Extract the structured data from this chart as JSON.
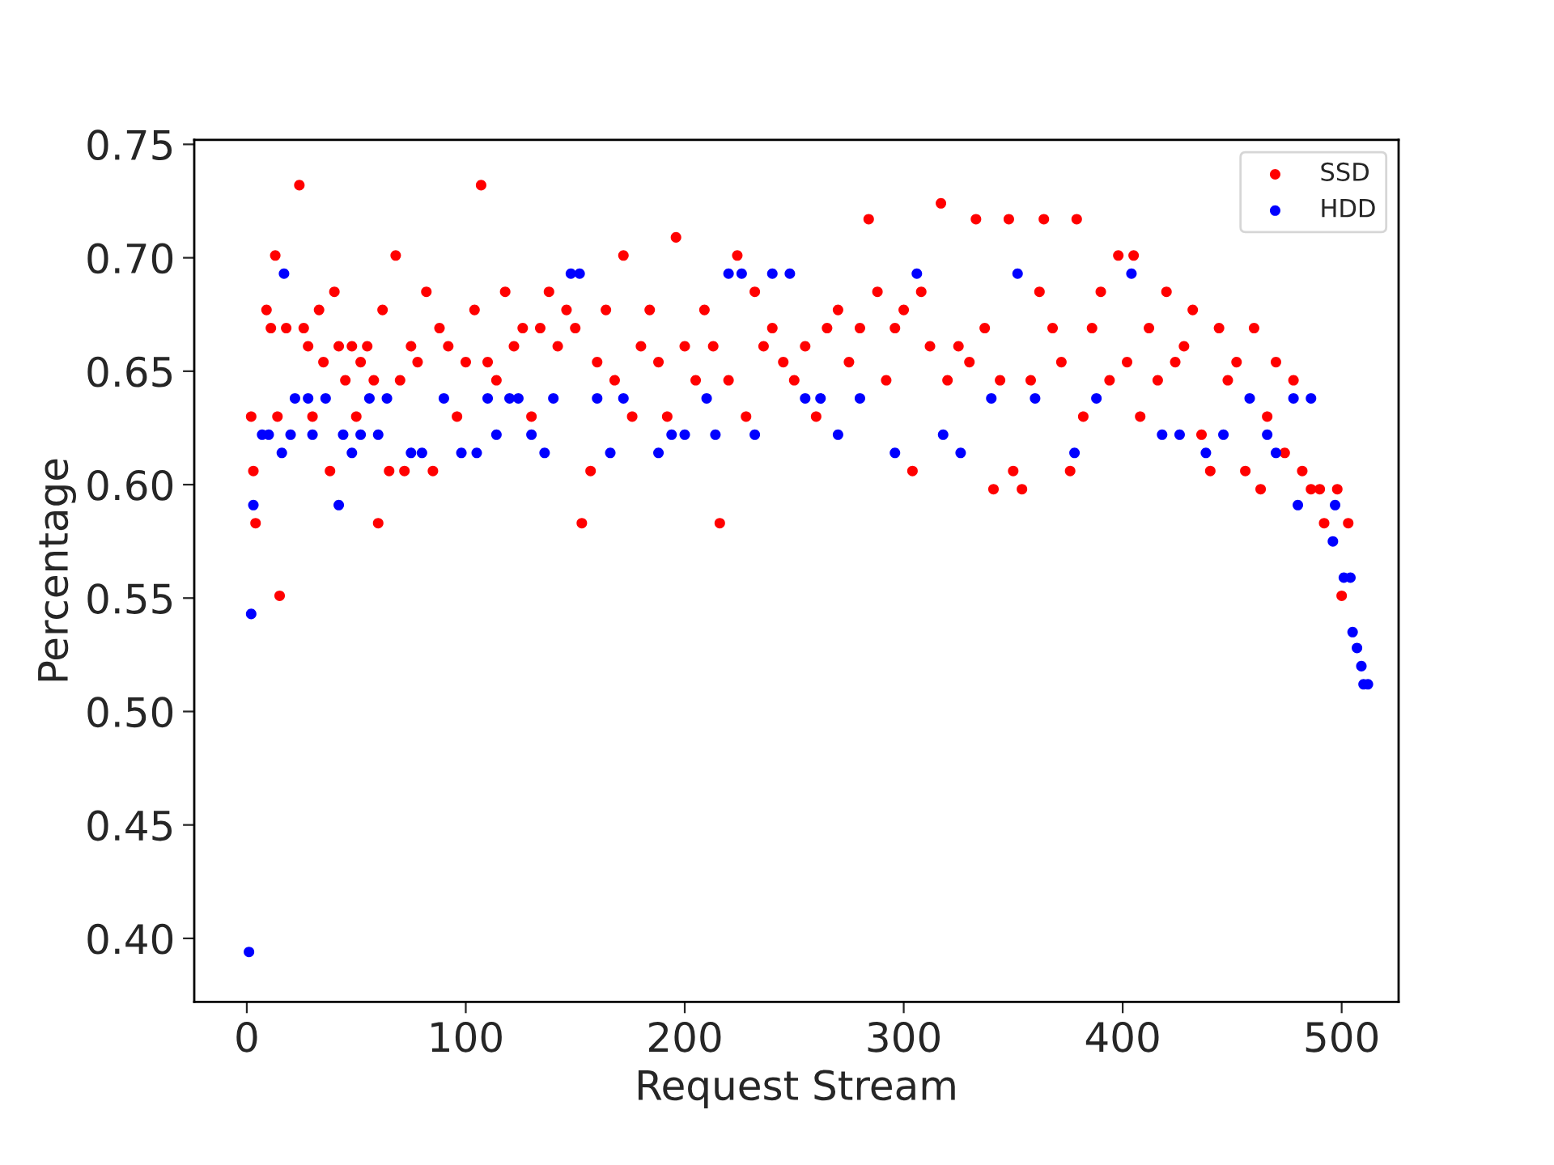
{
  "chart_data": {
    "type": "scatter",
    "xlabel": "Request Stream",
    "ylabel": "Percentage",
    "xlim": [
      -24,
      526
    ],
    "xticks": [
      0,
      100,
      200,
      300,
      400,
      500
    ],
    "ylim": [
      0.372,
      0.752
    ],
    "yticks": [
      {
        "value": 0.4,
        "label": "0.40"
      },
      {
        "value": 0.45,
        "label": "0.45"
      },
      {
        "value": 0.5,
        "label": "0.50"
      },
      {
        "value": 0.55,
        "label": "0.55"
      },
      {
        "value": 0.6,
        "label": "0.60"
      },
      {
        "value": 0.65,
        "label": "0.65"
      },
      {
        "value": 0.7,
        "label": "0.70"
      },
      {
        "value": 0.75,
        "label": "0.75"
      }
    ],
    "legend": "top right",
    "marker": "circle",
    "grid": false,
    "series": [
      {
        "name": "SSD",
        "color": "#ff0000",
        "x": [
          2,
          3,
          4,
          7,
          9,
          11,
          13,
          14,
          15,
          18,
          24,
          26,
          28,
          30,
          33,
          35,
          38,
          40,
          42,
          45,
          48,
          50,
          52,
          55,
          58,
          60,
          62,
          65,
          68,
          70,
          72,
          75,
          78,
          82,
          85,
          88,
          92,
          96,
          100,
          104,
          107,
          110,
          114,
          118,
          122,
          126,
          130,
          134,
          138,
          142,
          146,
          150,
          153,
          157,
          160,
          164,
          168,
          172,
          176,
          180,
          184,
          188,
          192,
          196,
          200,
          205,
          209,
          213,
          216,
          220,
          224,
          228,
          232,
          236,
          240,
          245,
          250,
          255,
          260,
          265,
          270,
          275,
          280,
          284,
          288,
          292,
          296,
          300,
          304,
          308,
          312,
          317,
          320,
          325,
          330,
          333,
          337,
          341,
          344,
          348,
          350,
          354,
          358,
          362,
          364,
          368,
          372,
          376,
          379,
          382,
          386,
          390,
          394,
          398,
          402,
          405,
          408,
          412,
          416,
          420,
          424,
          428,
          432,
          436,
          440,
          444,
          448,
          452,
          456,
          460,
          463,
          466,
          470,
          474,
          478,
          482,
          486,
          490,
          492,
          498,
          500,
          503
        ],
        "values": [
          0.63,
          0.606,
          0.583,
          null,
          0.677,
          0.669,
          0.701,
          0.63,
          0.551,
          0.669,
          0.732,
          0.669,
          0.661,
          0.63,
          0.677,
          0.654,
          0.606,
          0.685,
          0.661,
          0.646,
          0.661,
          0.63,
          0.654,
          0.661,
          0.646,
          0.583,
          0.677,
          0.606,
          0.701,
          0.646,
          0.606,
          0.661,
          0.654,
          0.685,
          0.606,
          0.669,
          0.661,
          0.63,
          0.654,
          0.677,
          0.732,
          0.654,
          0.646,
          0.685,
          0.661,
          0.669,
          0.63,
          0.669,
          0.685,
          0.661,
          0.677,
          0.669,
          0.583,
          0.606,
          0.654,
          0.677,
          0.646,
          0.701,
          0.63,
          0.661,
          0.677,
          0.654,
          0.63,
          0.709,
          0.661,
          0.646,
          0.677,
          0.661,
          0.583,
          0.646,
          0.701,
          0.63,
          0.685,
          0.661,
          0.669,
          0.654,
          0.646,
          0.661,
          0.63,
          0.669,
          0.677,
          0.654,
          0.669,
          0.717,
          0.685,
          0.646,
          0.669,
          0.677,
          0.606,
          0.685,
          0.661,
          0.724,
          0.646,
          0.661,
          0.654,
          0.717,
          0.669,
          0.598,
          0.646,
          0.717,
          0.606,
          0.598,
          0.646,
          0.685,
          0.717,
          0.669,
          0.654,
          0.606,
          0.717,
          0.63,
          0.669,
          0.685,
          0.646,
          0.701,
          0.654,
          0.701,
          0.63,
          0.669,
          0.646,
          0.685,
          0.654,
          0.661,
          0.677,
          0.622,
          0.606,
          0.669,
          0.646,
          0.654,
          0.606,
          0.669,
          0.598,
          0.63,
          0.654,
          0.614,
          0.646,
          0.606,
          0.598,
          0.598,
          0.583,
          0.598,
          0.551,
          0.583
        ]
      },
      {
        "name": "HDD",
        "color": "#0000ff",
        "x": [
          1,
          2,
          3,
          7,
          10,
          16,
          17,
          20,
          22,
          28,
          30,
          36,
          42,
          44,
          48,
          52,
          56,
          60,
          64,
          75,
          80,
          90,
          98,
          105,
          110,
          114,
          120,
          124,
          130,
          136,
          140,
          148,
          152,
          160,
          166,
          172,
          188,
          194,
          200,
          210,
          214,
          220,
          226,
          232,
          240,
          248,
          255,
          262,
          270,
          280,
          296,
          306,
          318,
          326,
          340,
          352,
          360,
          378,
          388,
          404,
          418,
          426,
          438,
          446,
          458,
          466,
          470,
          478,
          480,
          486,
          496,
          497,
          501,
          504,
          505,
          507,
          509,
          510,
          512
        ],
        "values": [
          0.394,
          0.543,
          0.591,
          0.622,
          0.622,
          0.614,
          0.693,
          0.622,
          0.638,
          0.638,
          0.622,
          0.638,
          0.591,
          0.622,
          0.614,
          0.622,
          0.638,
          0.622,
          0.638,
          0.614,
          0.614,
          0.638,
          0.614,
          0.614,
          0.638,
          0.622,
          0.638,
          0.638,
          0.622,
          0.614,
          0.638,
          0.693,
          0.693,
          0.638,
          0.614,
          0.638,
          0.614,
          0.622,
          0.622,
          0.638,
          0.622,
          0.693,
          0.693,
          0.622,
          0.693,
          0.693,
          0.638,
          0.638,
          0.622,
          0.638,
          0.614,
          0.693,
          0.622,
          0.614,
          0.638,
          0.693,
          0.638,
          0.614,
          0.638,
          0.693,
          0.622,
          0.622,
          0.614,
          0.622,
          0.638,
          0.622,
          0.614,
          0.638,
          0.591,
          0.638,
          0.575,
          0.591,
          0.559,
          0.559,
          0.535,
          0.528,
          0.52,
          0.512,
          0.512
        ]
      }
    ]
  }
}
